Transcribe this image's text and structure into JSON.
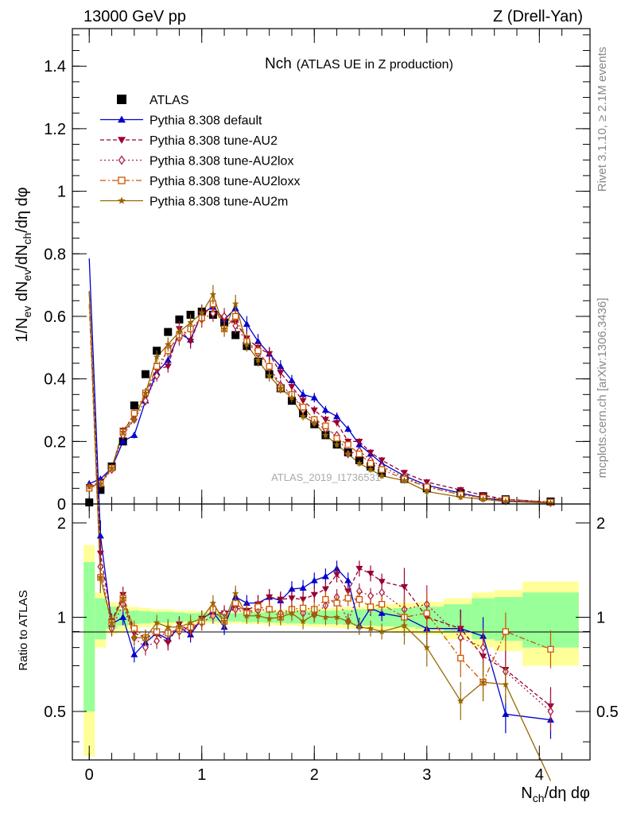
{
  "header": {
    "left": "13000 GeV pp",
    "right": "Z (Drell-Yan)"
  },
  "side_labels": {
    "rivet": "Rivet 3.1.10, ≥ 2.1M events",
    "mcplots": "mcplots.cern.ch [arXiv:1306.3436]"
  },
  "chart_data": [
    {
      "type": "scatter",
      "panel": "main",
      "title": "Nch",
      "subtitle": "(ATLAS UE in Z production)",
      "watermark": "ATLAS_2019_I1736531",
      "ylabel": "1/N_ev dN_ev/dN_ch/dη dφ",
      "xlabel": "N_ch/dη dφ",
      "xlim": [
        -0.15,
        4.45
      ],
      "ylim": [
        0,
        1.52
      ],
      "yticks": [
        "0",
        "0.2",
        "0.4",
        "0.6",
        "0.8",
        "1",
        "1.2",
        "1.4"
      ],
      "xticks": [
        "0",
        "1",
        "2",
        "3",
        "4"
      ],
      "legend_position": "top-left",
      "colors": {
        "ATLAS": "#000000",
        "default": "#0000cc",
        "AU2": "#990033",
        "AU2lox": "#aa2244",
        "AU2loxx": "#cc5500",
        "AU2m": "#996600"
      },
      "x": [
        0.0,
        0.1,
        0.2,
        0.3,
        0.4,
        0.5,
        0.6,
        0.7,
        0.8,
        0.9,
        1.0,
        1.1,
        1.2,
        1.3,
        1.4,
        1.5,
        1.6,
        1.7,
        1.8,
        1.9,
        2.0,
        2.1,
        2.2,
        2.3,
        2.4,
        2.5,
        2.6,
        2.8,
        3.0,
        3.3,
        3.5,
        3.7,
        4.1
      ],
      "series": [
        {
          "name": "ATLAS",
          "key": "ATLAS",
          "marker": "square",
          "values": [
            0.005,
            0.045,
            0.12,
            0.2,
            0.315,
            0.415,
            0.49,
            0.55,
            0.59,
            0.605,
            0.615,
            0.605,
            0.58,
            0.54,
            0.505,
            0.455,
            0.415,
            0.37,
            0.33,
            0.29,
            0.255,
            0.22,
            0.19,
            0.165,
            0.14,
            0.12,
            0.1,
            0.08,
            0.05,
            0.035,
            0.025,
            0.015,
            0.008
          ]
        },
        {
          "name": "Pythia 8.308 default",
          "key": "default",
          "marker": "triangle-up",
          "values": [
            0.065,
            0.08,
            0.115,
            0.2,
            0.22,
            0.33,
            0.42,
            0.46,
            0.545,
            0.525,
            0.61,
            0.63,
            0.59,
            0.625,
            0.575,
            0.52,
            0.48,
            0.44,
            0.395,
            0.35,
            0.34,
            0.3,
            0.28,
            0.24,
            0.19,
            0.16,
            0.13,
            0.09,
            0.06,
            0.035,
            0.02,
            0.01,
            0.004
          ]
        },
        {
          "name": "Pythia 8.308 tune-AU2",
          "key": "AU2",
          "marker": "triangle-down",
          "values": [
            0.055,
            0.07,
            0.115,
            0.235,
            0.28,
            0.345,
            0.43,
            0.44,
            0.56,
            0.52,
            0.61,
            0.63,
            0.59,
            0.58,
            0.53,
            0.5,
            0.48,
            0.42,
            0.375,
            0.33,
            0.3,
            0.27,
            0.26,
            0.2,
            0.2,
            0.165,
            0.14,
            0.1,
            0.07,
            0.045,
            0.028,
            0.015,
            0.006
          ]
        },
        {
          "name": "Pythia 8.308 tune-AU2lox",
          "key": "AU2lox",
          "marker": "diamond-open",
          "values": [
            0.055,
            0.065,
            0.11,
            0.22,
            0.27,
            0.33,
            0.41,
            0.5,
            0.53,
            0.56,
            0.59,
            0.61,
            0.6,
            0.57,
            0.52,
            0.48,
            0.44,
            0.38,
            0.35,
            0.3,
            0.26,
            0.24,
            0.22,
            0.16,
            0.17,
            0.14,
            0.12,
            0.085,
            0.055,
            0.03,
            0.02,
            0.01,
            0.004
          ]
        },
        {
          "name": "Pythia 8.308 tune-AU2loxx",
          "key": "AU2loxx",
          "marker": "square-open",
          "values": [
            0.05,
            0.065,
            0.115,
            0.23,
            0.29,
            0.355,
            0.44,
            0.49,
            0.54,
            0.56,
            0.595,
            0.64,
            0.56,
            0.6,
            0.52,
            0.49,
            0.44,
            0.37,
            0.35,
            0.31,
            0.27,
            0.25,
            0.21,
            0.19,
            0.16,
            0.13,
            0.11,
            0.08,
            0.055,
            0.03,
            0.02,
            0.015,
            0.006
          ]
        },
        {
          "name": "Pythia 8.308 tune-AU2m",
          "key": "AU2m",
          "marker": "star",
          "values": [
            0.055,
            0.065,
            0.115,
            0.23,
            0.27,
            0.355,
            0.47,
            0.51,
            0.55,
            0.58,
            0.61,
            0.67,
            0.56,
            0.64,
            0.51,
            0.46,
            0.41,
            0.37,
            0.34,
            0.28,
            0.26,
            0.22,
            0.19,
            0.16,
            0.13,
            0.11,
            0.09,
            0.075,
            0.04,
            0.022,
            0.015,
            0.008,
            0.003
          ]
        }
      ]
    },
    {
      "type": "line",
      "panel": "ratio",
      "ylabel": "Ratio to ATLAS",
      "xlabel": "N_ch/dη dφ",
      "xlim": [
        -0.15,
        4.45
      ],
      "ylim": [
        0.35,
        2.3
      ],
      "yticks": [
        "0.5",
        "1",
        "2"
      ],
      "xticks": [
        "0",
        "1",
        "2",
        "3",
        "4"
      ],
      "log_y": true,
      "bands": {
        "outer_color": "#ffff99",
        "inner_color": "#99ff99",
        "edges": [
          -0.05,
          0.05,
          0.15,
          0.25,
          0.35,
          0.45,
          0.55,
          0.65,
          0.75,
          0.85,
          0.95,
          1.05,
          1.15,
          1.25,
          1.35,
          1.45,
          1.55,
          1.65,
          1.75,
          1.85,
          1.95,
          2.05,
          2.15,
          2.25,
          2.35,
          2.45,
          2.55,
          2.7,
          2.9,
          3.15,
          3.4,
          3.6,
          3.85,
          4.35
        ],
        "inner_half_width": [
          0.5,
          0.15,
          0.08,
          0.06,
          0.05,
          0.045,
          0.04,
          0.04,
          0.035,
          0.03,
          0.03,
          0.03,
          0.03,
          0.03,
          0.035,
          0.035,
          0.04,
          0.04,
          0.045,
          0.045,
          0.05,
          0.05,
          0.05,
          0.055,
          0.06,
          0.06,
          0.065,
          0.07,
          0.08,
          0.1,
          0.15,
          0.16,
          0.2,
          0.25
        ],
        "outer_half_width": [
          0.7,
          0.2,
          0.12,
          0.1,
          0.08,
          0.07,
          0.06,
          0.06,
          0.05,
          0.05,
          0.045,
          0.045,
          0.045,
          0.045,
          0.05,
          0.05,
          0.055,
          0.06,
          0.06,
          0.065,
          0.07,
          0.07,
          0.075,
          0.08,
          0.08,
          0.09,
          0.1,
          0.11,
          0.12,
          0.15,
          0.2,
          0.22,
          0.3,
          0.5
        ]
      },
      "series": [
        {
          "name": "Pythia 8.308 default",
          "key": "default",
          "marker": "triangle-up",
          "values": [
            14.0,
            1.82,
            0.95,
            1.0,
            0.76,
            0.83,
            0.89,
            0.85,
            0.93,
            0.88,
            0.99,
            1.04,
            0.93,
            1.16,
            1.11,
            1.11,
            1.16,
            1.13,
            1.23,
            1.24,
            1.31,
            1.35,
            1.43,
            1.31,
            0.94,
            1.07,
            1.03,
            1.0,
            0.92,
            0.92,
            0.87,
            0.49,
            0.47
          ]
        },
        {
          "name": "Pythia 8.308 tune-AU2",
          "key": "AU2",
          "marker": "triangle-down",
          "values": [
            11.0,
            1.6,
            0.97,
            1.18,
            0.89,
            0.86,
            0.88,
            0.83,
            0.95,
            0.9,
            0.99,
            1.04,
            1.03,
            1.07,
            1.05,
            1.1,
            1.16,
            1.14,
            1.15,
            1.14,
            1.18,
            1.23,
            1.37,
            1.21,
            1.43,
            1.38,
            1.3,
            1.25,
            1.0,
            0.92,
            0.75,
            0.68,
            0.52
          ]
        },
        {
          "name": "Pythia 8.308 tune-AU2lox",
          "key": "AU2lox",
          "marker": "diamond-open",
          "values": [
            11.0,
            1.45,
            0.92,
            1.1,
            0.86,
            0.8,
            0.84,
            0.91,
            0.9,
            0.93,
            0.96,
            1.01,
            1.03,
            1.06,
            1.03,
            1.05,
            1.06,
            1.03,
            1.06,
            1.03,
            1.02,
            1.09,
            1.16,
            0.97,
            1.21,
            1.17,
            1.2,
            1.06,
            1.1,
            0.86,
            0.8,
            0.67,
            0.5
          ]
        },
        {
          "name": "Pythia 8.308 tune-AU2loxx",
          "key": "AU2loxx",
          "marker": "square-open",
          "values": [
            10.0,
            1.34,
            0.96,
            1.15,
            0.92,
            0.86,
            0.9,
            0.89,
            0.92,
            0.93,
            0.97,
            1.06,
            0.97,
            1.11,
            1.03,
            1.08,
            1.06,
            1.0,
            1.06,
            1.07,
            1.06,
            1.14,
            1.11,
            1.15,
            1.14,
            1.08,
            1.1,
            1.0,
            1.03,
            0.74,
            0.62,
            0.9,
            0.79
          ]
        },
        {
          "name": "Pythia 8.308 tune-AU2m",
          "key": "AU2m",
          "marker": "star",
          "values": [
            11.0,
            1.34,
            0.96,
            1.15,
            0.86,
            0.86,
            0.96,
            0.93,
            0.93,
            0.96,
            0.99,
            1.11,
            0.97,
            1.19,
            1.01,
            1.01,
            0.99,
            1.0,
            1.03,
            0.97,
            1.02,
            1.0,
            1.0,
            0.97,
            0.93,
            0.92,
            0.9,
            0.94,
            0.8,
            0.54,
            0.62,
            0.61,
            0.3
          ]
        }
      ]
    }
  ]
}
